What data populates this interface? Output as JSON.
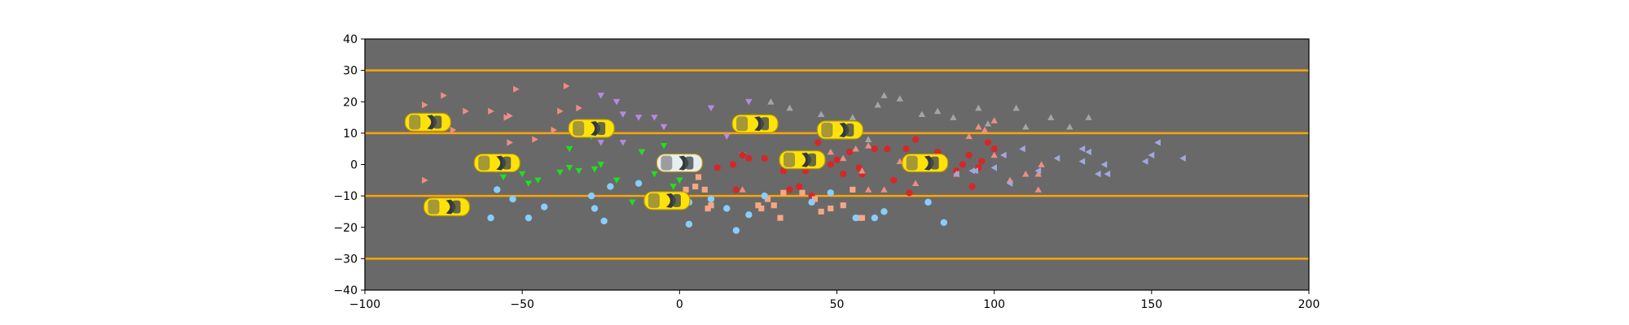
{
  "chart_data": {
    "type": "scatter",
    "title": "",
    "xlabel": "",
    "ylabel": "",
    "xlim": [
      -100,
      200
    ],
    "ylim": [
      -40,
      40
    ],
    "xticks": [
      -100,
      -50,
      0,
      50,
      100,
      150,
      200
    ],
    "yticks": [
      -40,
      -30,
      -20,
      -10,
      0,
      10,
      20,
      30,
      40
    ],
    "xtick_labels": [
      "−100",
      "−50",
      "0",
      "50",
      "100",
      "150",
      "200"
    ],
    "ytick_labels": [
      "−40",
      "−30",
      "−20",
      "−10",
      "0",
      "10",
      "20",
      "30",
      "40"
    ],
    "grid": false,
    "legend": "none",
    "background_color": "#696969",
    "lane_color": "#ffa500",
    "lane_lines_y": [
      -30,
      -10,
      10,
      30
    ],
    "vehicles": [
      {
        "x": -80,
        "y": 13.5,
        "color": "#ffe20a"
      },
      {
        "x": -58,
        "y": 0.5,
        "color": "#ffe20a"
      },
      {
        "x": -74,
        "y": -13.5,
        "color": "#ffe20a"
      },
      {
        "x": -28,
        "y": 11.5,
        "color": "#ffe20a"
      },
      {
        "x": -4,
        "y": -11.5,
        "color": "#ffe20a"
      },
      {
        "x": 0,
        "y": 0.5,
        "color": "#e8eef0"
      },
      {
        "x": 24,
        "y": 13,
        "color": "#ffe20a"
      },
      {
        "x": 39,
        "y": 1.5,
        "color": "#ffe20a"
      },
      {
        "x": 51,
        "y": 11,
        "color": "#ffe20a"
      },
      {
        "x": 78,
        "y": 0.5,
        "color": "#ffe20a"
      }
    ],
    "series": [
      {
        "marker": "triangle-right",
        "color": "#f08c84",
        "points": [
          [
            -81,
            19
          ],
          [
            -75,
            22
          ],
          [
            -68,
            17
          ],
          [
            -60,
            17
          ],
          [
            -55,
            15
          ],
          [
            -52,
            24
          ],
          [
            -36,
            25
          ],
          [
            -32,
            18
          ],
          [
            -38,
            17
          ],
          [
            -40,
            11
          ],
          [
            -54,
            7
          ],
          [
            -46,
            8
          ],
          [
            -72,
            11
          ],
          [
            -81,
            -5
          ],
          [
            -54,
            15.5
          ]
        ]
      },
      {
        "marker": "triangle-down",
        "color": "#b88ae0",
        "points": [
          [
            -25,
            22
          ],
          [
            -20,
            20
          ],
          [
            -18,
            16
          ],
          [
            -13,
            15
          ],
          [
            -5,
            12
          ],
          [
            -25,
            7
          ],
          [
            -18,
            7
          ],
          [
            -12,
            4
          ],
          [
            -8,
            15
          ],
          [
            10,
            18
          ],
          [
            15,
            9
          ],
          [
            22,
            20
          ],
          [
            20,
            3
          ]
        ]
      },
      {
        "marker": "triangle-down",
        "color": "#1ee01e",
        "points": [
          [
            -56,
            -4
          ],
          [
            -50,
            -3
          ],
          [
            -48,
            -6
          ],
          [
            -45,
            -5
          ],
          [
            -38,
            -2.5
          ],
          [
            -35,
            -1
          ],
          [
            -32,
            -2
          ],
          [
            -27,
            -1.5
          ],
          [
            -25,
            0
          ],
          [
            -20,
            -5
          ],
          [
            -15,
            -12
          ],
          [
            -12,
            4
          ],
          [
            -8,
            -3
          ],
          [
            -2,
            -7
          ],
          [
            0,
            -5
          ],
          [
            -5,
            6
          ],
          [
            -35,
            5
          ],
          [
            -28,
            9
          ]
        ]
      },
      {
        "marker": "circle",
        "color": "#d42828",
        "points": [
          [
            12,
            -1
          ],
          [
            17,
            0
          ],
          [
            20,
            3
          ],
          [
            22,
            2
          ],
          [
            27,
            2
          ],
          [
            33,
            -2
          ],
          [
            35,
            -8
          ],
          [
            38,
            -7
          ],
          [
            40,
            -2
          ],
          [
            44,
            1
          ],
          [
            48,
            0
          ],
          [
            52,
            -3
          ],
          [
            54,
            4
          ],
          [
            57,
            -1
          ],
          [
            58,
            -3
          ],
          [
            62,
            5
          ],
          [
            66,
            5
          ],
          [
            68,
            -5
          ],
          [
            72,
            5
          ],
          [
            73,
            -9
          ],
          [
            82,
            4
          ],
          [
            88,
            -2
          ],
          [
            90,
            0
          ],
          [
            92,
            3
          ],
          [
            93,
            -7
          ],
          [
            96,
            1
          ],
          [
            98,
            7
          ],
          [
            100,
            5
          ],
          [
            18,
            -8
          ],
          [
            42,
            -10
          ],
          [
            50,
            1.5
          ],
          [
            75,
            8
          ],
          [
            84,
            2
          ],
          [
            44,
            7
          ],
          [
            95,
            -1
          ]
        ]
      },
      {
        "marker": "square",
        "color": "#f8a682",
        "points": [
          [
            2,
            -8
          ],
          [
            5,
            -7
          ],
          [
            8,
            -8
          ],
          [
            9,
            -14
          ],
          [
            10,
            -13
          ],
          [
            25,
            -13
          ],
          [
            26,
            -14
          ],
          [
            28,
            -11
          ],
          [
            30,
            -13
          ],
          [
            32,
            -17
          ],
          [
            33,
            -9
          ],
          [
            39,
            -9
          ],
          [
            43,
            -11
          ],
          [
            45,
            -15
          ],
          [
            48,
            -14
          ],
          [
            52,
            -13
          ],
          [
            55,
            -8
          ],
          [
            57,
            -17
          ],
          [
            58,
            -17
          ],
          [
            6,
            -4
          ]
        ]
      },
      {
        "marker": "triangle-up",
        "color": "#f08c84",
        "points": [
          [
            48,
            4
          ],
          [
            52,
            2
          ],
          [
            56,
            5
          ],
          [
            58,
            -2
          ],
          [
            60,
            -8
          ],
          [
            65,
            -8
          ],
          [
            70,
            1
          ],
          [
            75,
            -6
          ],
          [
            88,
            -3
          ],
          [
            92,
            9
          ],
          [
            95,
            12
          ],
          [
            97,
            11
          ],
          [
            100,
            14
          ],
          [
            100,
            3
          ],
          [
            105,
            -5
          ],
          [
            110,
            -3
          ],
          [
            114,
            -3
          ],
          [
            114,
            -8
          ],
          [
            115,
            0
          ],
          [
            20,
            -8
          ],
          [
            60,
            6
          ]
        ]
      },
      {
        "marker": "triangle-up",
        "color": "#a5a5a5",
        "points": [
          [
            29,
            20
          ],
          [
            35,
            18
          ],
          [
            45,
            16
          ],
          [
            55,
            15
          ],
          [
            60,
            8
          ],
          [
            63,
            19
          ],
          [
            65,
            22
          ],
          [
            70,
            21
          ],
          [
            77,
            16
          ],
          [
            82,
            17
          ],
          [
            87,
            15
          ],
          [
            95,
            18
          ],
          [
            98,
            13
          ],
          [
            107,
            18
          ],
          [
            110,
            12
          ],
          [
            118,
            15
          ],
          [
            124,
            12
          ],
          [
            130,
            15
          ]
        ]
      },
      {
        "marker": "circle",
        "color": "#87cefa",
        "points": [
          [
            -58,
            -8
          ],
          [
            -53,
            -11
          ],
          [
            -48,
            -17
          ],
          [
            -43,
            -13.5
          ],
          [
            -28,
            -10
          ],
          [
            -27,
            -14
          ],
          [
            -24,
            -18
          ],
          [
            -22,
            -7
          ],
          [
            -13,
            -6
          ],
          [
            3,
            -12
          ],
          [
            3,
            -19
          ],
          [
            10,
            -11
          ],
          [
            15,
            -14
          ],
          [
            18,
            -21
          ],
          [
            22,
            -16
          ],
          [
            27,
            -10
          ],
          [
            42,
            -12
          ],
          [
            48,
            -9
          ],
          [
            56,
            -17
          ],
          [
            62,
            -17
          ],
          [
            65,
            -15
          ],
          [
            79,
            -12
          ],
          [
            84,
            -18.5
          ],
          [
            -60,
            -17
          ]
        ]
      },
      {
        "marker": "triangle-left",
        "color": "#a0a8e0",
        "points": [
          [
            88,
            -3
          ],
          [
            93,
            -2
          ],
          [
            100,
            -1
          ],
          [
            105,
            -6
          ],
          [
            109,
            5
          ],
          [
            114,
            -2
          ],
          [
            120,
            2
          ],
          [
            128,
            1
          ],
          [
            130,
            4
          ],
          [
            133,
            -3
          ],
          [
            135,
            0
          ],
          [
            136,
            -3
          ],
          [
            148,
            1
          ],
          [
            150,
            3
          ],
          [
            152,
            7
          ],
          [
            160,
            2
          ],
          [
            103,
            3
          ],
          [
            94,
            -2
          ],
          [
            128,
            5
          ]
        ]
      }
    ]
  }
}
